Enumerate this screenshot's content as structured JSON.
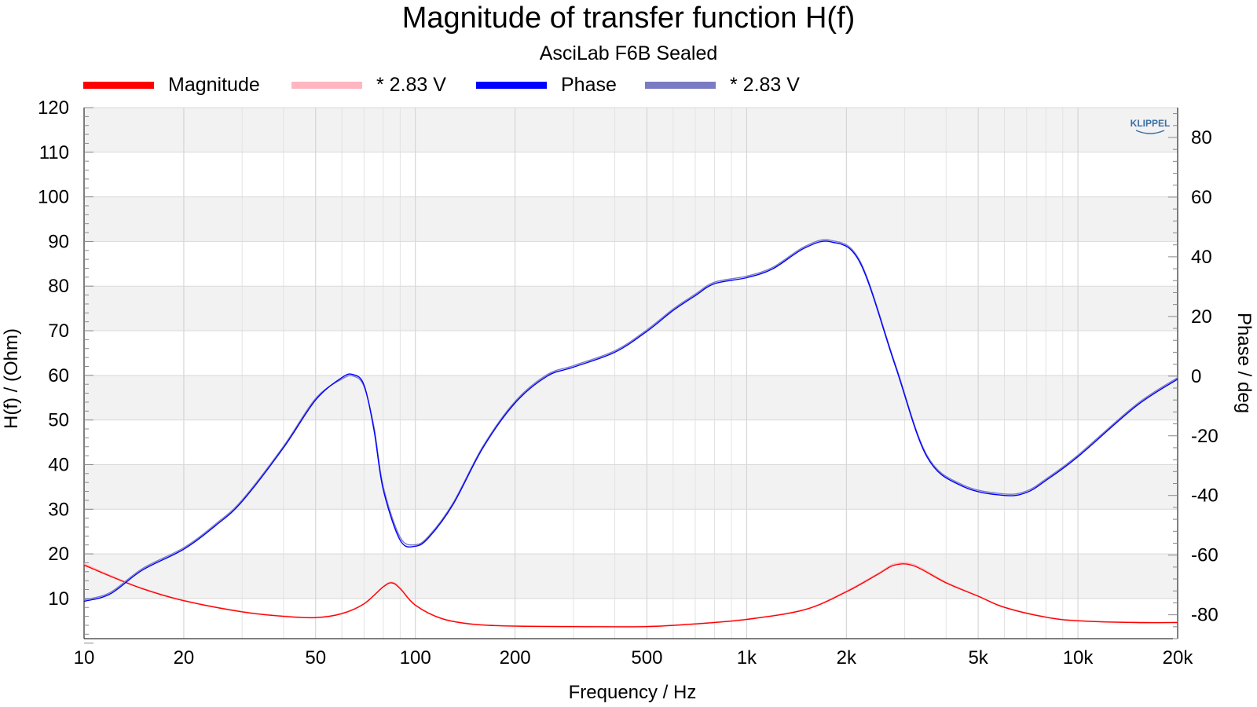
{
  "chart_data": {
    "type": "line",
    "title": "Magnitude of transfer function H(f)",
    "subtitle": "AsciLab F6B Sealed",
    "xlabel": "Frequency / Hz",
    "ylabel": "H(f) / (Ohm)",
    "y2label": "Phase / deg",
    "xscale": "log",
    "xlim": [
      10,
      20000
    ],
    "ylim": [
      1,
      120
    ],
    "y2lim": [
      -88,
      90
    ],
    "x_ticks": [
      10,
      20,
      50,
      100,
      200,
      500,
      1000,
      2000,
      5000,
      10000,
      20000
    ],
    "x_tick_labels": [
      "10",
      "20",
      "50",
      "100",
      "200",
      "500",
      "1k",
      "2k",
      "5k",
      "10k",
      "20k"
    ],
    "y_ticks": [
      10,
      20,
      30,
      40,
      50,
      60,
      70,
      80,
      90,
      100,
      110,
      120
    ],
    "y2_ticks": [
      -80,
      -60,
      -40,
      -20,
      0,
      20,
      40,
      60,
      80
    ],
    "grid": true,
    "legend_position": "top",
    "watermark": "KLIPPEL",
    "series": [
      {
        "name": "Magnitude",
        "axis": "left",
        "color": "#ff0000",
        "x": [
          10,
          12,
          15,
          20,
          30,
          40,
          50,
          60,
          70,
          80,
          85,
          90,
          100,
          120,
          150,
          200,
          300,
          500,
          700,
          1000,
          1500,
          2000,
          2500,
          2800,
          3200,
          4000,
          5000,
          6000,
          8000,
          10000,
          15000,
          20000
        ],
        "y": [
          17.5,
          15,
          12.2,
          9.5,
          7,
          6,
          5.7,
          6.6,
          8.8,
          12.6,
          13.5,
          12.2,
          8.5,
          5.5,
          4.2,
          3.8,
          3.7,
          3.7,
          4.3,
          5.3,
          7.5,
          11.5,
          15.5,
          17.5,
          17.3,
          13.5,
          10.5,
          8,
          5.8,
          5,
          4.6,
          4.6
        ]
      },
      {
        "name": "* 2.83 V",
        "axis": "left",
        "color": "#ffb6c1",
        "x": [
          10,
          12,
          15,
          20,
          30,
          40,
          50,
          60,
          70,
          80,
          85,
          90,
          100,
          120,
          150,
          200,
          300,
          500,
          700,
          1000,
          1500,
          2000,
          2500,
          2800,
          3200,
          4000,
          5000,
          6000,
          8000,
          10000,
          15000,
          20000
        ],
        "y": [
          17.8,
          15.2,
          12.3,
          9.6,
          7.1,
          6.1,
          5.8,
          6.7,
          8.9,
          12.7,
          13.7,
          12.4,
          8.6,
          5.6,
          4.3,
          3.9,
          3.8,
          3.8,
          4.4,
          5.4,
          7.6,
          11.7,
          15.7,
          17.8,
          17.6,
          13.7,
          10.6,
          8.1,
          5.9,
          5.1,
          4.7,
          4.7
        ]
      },
      {
        "name": "Phase",
        "axis": "right",
        "color": "#0000ff",
        "x": [
          10,
          12,
          15,
          20,
          25,
          30,
          40,
          50,
          60,
          65,
          70,
          75,
          80,
          90,
          100,
          110,
          130,
          160,
          200,
          250,
          300,
          400,
          500,
          600,
          700,
          800,
          1000,
          1200,
          1500,
          1800,
          2200,
          2800,
          3500,
          4500,
          6000,
          7000,
          8000,
          10000,
          15000,
          20000
        ],
        "y": [
          -75.5,
          -73,
          -65,
          -58,
          -50,
          -42,
          -24,
          -8,
          -0.5,
          0.5,
          -3,
          -18,
          -38,
          -55,
          -57,
          -54,
          -43,
          -24,
          -9,
          0,
          3,
          8,
          15,
          22,
          27,
          31,
          33,
          36,
          43,
          45,
          38,
          4,
          -27,
          -37,
          -40,
          -39,
          -35,
          -27,
          -10,
          -1
        ]
      },
      {
        "name": "* 2.83 V",
        "axis": "right",
        "color": "#7b7bc4",
        "x": [
          10,
          12,
          15,
          20,
          25,
          30,
          40,
          50,
          60,
          65,
          70,
          75,
          80,
          90,
          100,
          110,
          130,
          160,
          200,
          250,
          300,
          400,
          500,
          600,
          700,
          800,
          1000,
          1200,
          1500,
          1800,
          2200,
          2800,
          3500,
          4500,
          6000,
          7000,
          8000,
          10000,
          15000,
          20000
        ],
        "y": [
          -75,
          -72.5,
          -64.5,
          -57.5,
          -49.5,
          -41.5,
          -23.5,
          -7.5,
          -1,
          0,
          -3.5,
          -17,
          -37,
          -54,
          -56.5,
          -53.5,
          -42.5,
          -23.5,
          -8.5,
          0.5,
          3.5,
          8.5,
          15.5,
          22.5,
          27.5,
          31.5,
          33.5,
          36.5,
          43.5,
          45.5,
          38.5,
          4.5,
          -26.5,
          -36.5,
          -39.5,
          -38.5,
          -34.5,
          -26.5,
          -9.5,
          -0.5
        ]
      }
    ]
  }
}
